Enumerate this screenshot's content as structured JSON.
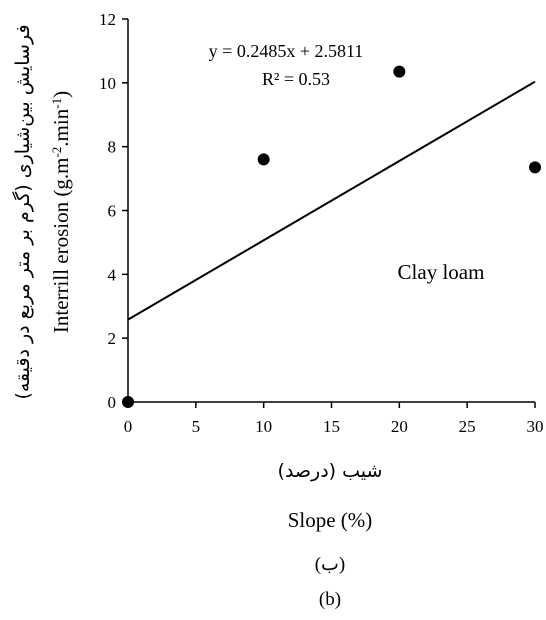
{
  "chart_data": {
    "type": "scatter",
    "points": [
      {
        "x": 0,
        "y": 0
      },
      {
        "x": 10,
        "y": 7.6
      },
      {
        "x": 20,
        "y": 10.35
      },
      {
        "x": 30,
        "y": 7.35
      }
    ],
    "trendline": {
      "type": "linear",
      "slope": 0.2485,
      "intercept": 2.5811,
      "x_range": [
        0,
        30
      ]
    },
    "equation": "y = 0.2485x + 2.5811",
    "r_squared": "R² = 0.53",
    "annotation": "Clay loam",
    "xlim": [
      0,
      30
    ],
    "ylim": [
      0,
      12
    ],
    "x_ticks": [
      "0",
      "5",
      "10",
      "15",
      "20",
      "25",
      "30"
    ],
    "y_ticks": [
      "0",
      "2",
      "4",
      "6",
      "8",
      "10",
      "12"
    ],
    "xlabel_persian": "شیب (درصد)",
    "xlabel": "Slope (%)",
    "ylabel_persian": "فرسایش بین‌شیاری (گرم بر متر مربع در دقیقه)",
    "ylabel": "Interrill erosion (g.m-2.min-1)",
    "ylabel_en_base": "Interrill erosion (g.m",
    "ylabel_en_sup1": "-2",
    "ylabel_en_mid": ".min",
    "ylabel_en_sup2": "-1",
    "ylabel_en_end": ")",
    "grid": false,
    "colors": {
      "marker": "#000000",
      "line": "#000000",
      "axis": "#000000"
    }
  },
  "caption": {
    "persian": "(ب)",
    "english": "(b)"
  }
}
